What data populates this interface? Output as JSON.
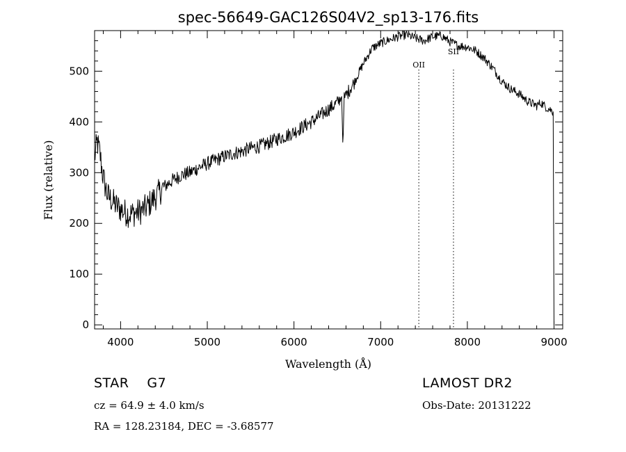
{
  "chart_data": {
    "type": "line",
    "title": "spec-56649-GAC126S04V2_sp13-176.fits",
    "xlabel": "Wavelength (Å)",
    "ylabel": "Flux (relative)",
    "xlim": [
      3700,
      9100
    ],
    "ylim": [
      -8,
      580
    ],
    "x_ticks": [
      4000,
      5000,
      6000,
      7000,
      8000,
      9000
    ],
    "y_ticks": [
      0,
      100,
      200,
      300,
      400,
      500
    ],
    "grid": false,
    "color": "#000000",
    "lines": [
      {
        "label": "OII",
        "x": 7440
      },
      {
        "label": "SII",
        "x": 7840
      }
    ],
    "series": [
      {
        "x": [
          3700,
          3730,
          3760,
          3790,
          3820,
          3850,
          3900,
          3950,
          4000,
          4050,
          4100,
          4150,
          4200,
          4250,
          4300,
          4350,
          4400,
          4450,
          4500,
          4600,
          4700,
          4800,
          4900,
          5000,
          5100,
          5200,
          5300,
          5400,
          5500,
          5600,
          5700,
          5800,
          5900,
          6000,
          6100,
          6200,
          6300,
          6400,
          6500,
          6550,
          6563,
          6580,
          6600,
          6700,
          6800,
          6900,
          7000,
          7100,
          7200,
          7300,
          7400,
          7500,
          7600,
          7700,
          7800,
          7900,
          8000,
          8100,
          8200,
          8300,
          8400,
          8500,
          8600,
          8700,
          8800,
          8850,
          8900,
          8950,
          8990,
          9000
        ],
        "y": [
          330,
          360,
          340,
          300,
          275,
          255,
          245,
          235,
          228,
          222,
          218,
          220,
          222,
          226,
          232,
          242,
          252,
          262,
          272,
          285,
          295,
          300,
          310,
          318,
          325,
          332,
          338,
          342,
          348,
          352,
          358,
          366,
          372,
          380,
          390,
          400,
          412,
          425,
          438,
          450,
          360,
          445,
          452,
          480,
          515,
          545,
          555,
          562,
          568,
          572,
          565,
          560,
          568,
          570,
          558,
          550,
          548,
          540,
          525,
          505,
          480,
          465,
          455,
          440,
          432,
          438,
          430,
          425,
          420,
          0
        ]
      }
    ]
  },
  "info": {
    "object_class": "STAR",
    "subclass": "G7",
    "survey": "LAMOST DR2",
    "redshift": "cz = 64.9 ± 4.0 km/s",
    "obs_date": "Obs-Date: 20131222",
    "coords": "RA = 128.23184, DEC =  -3.68577"
  }
}
